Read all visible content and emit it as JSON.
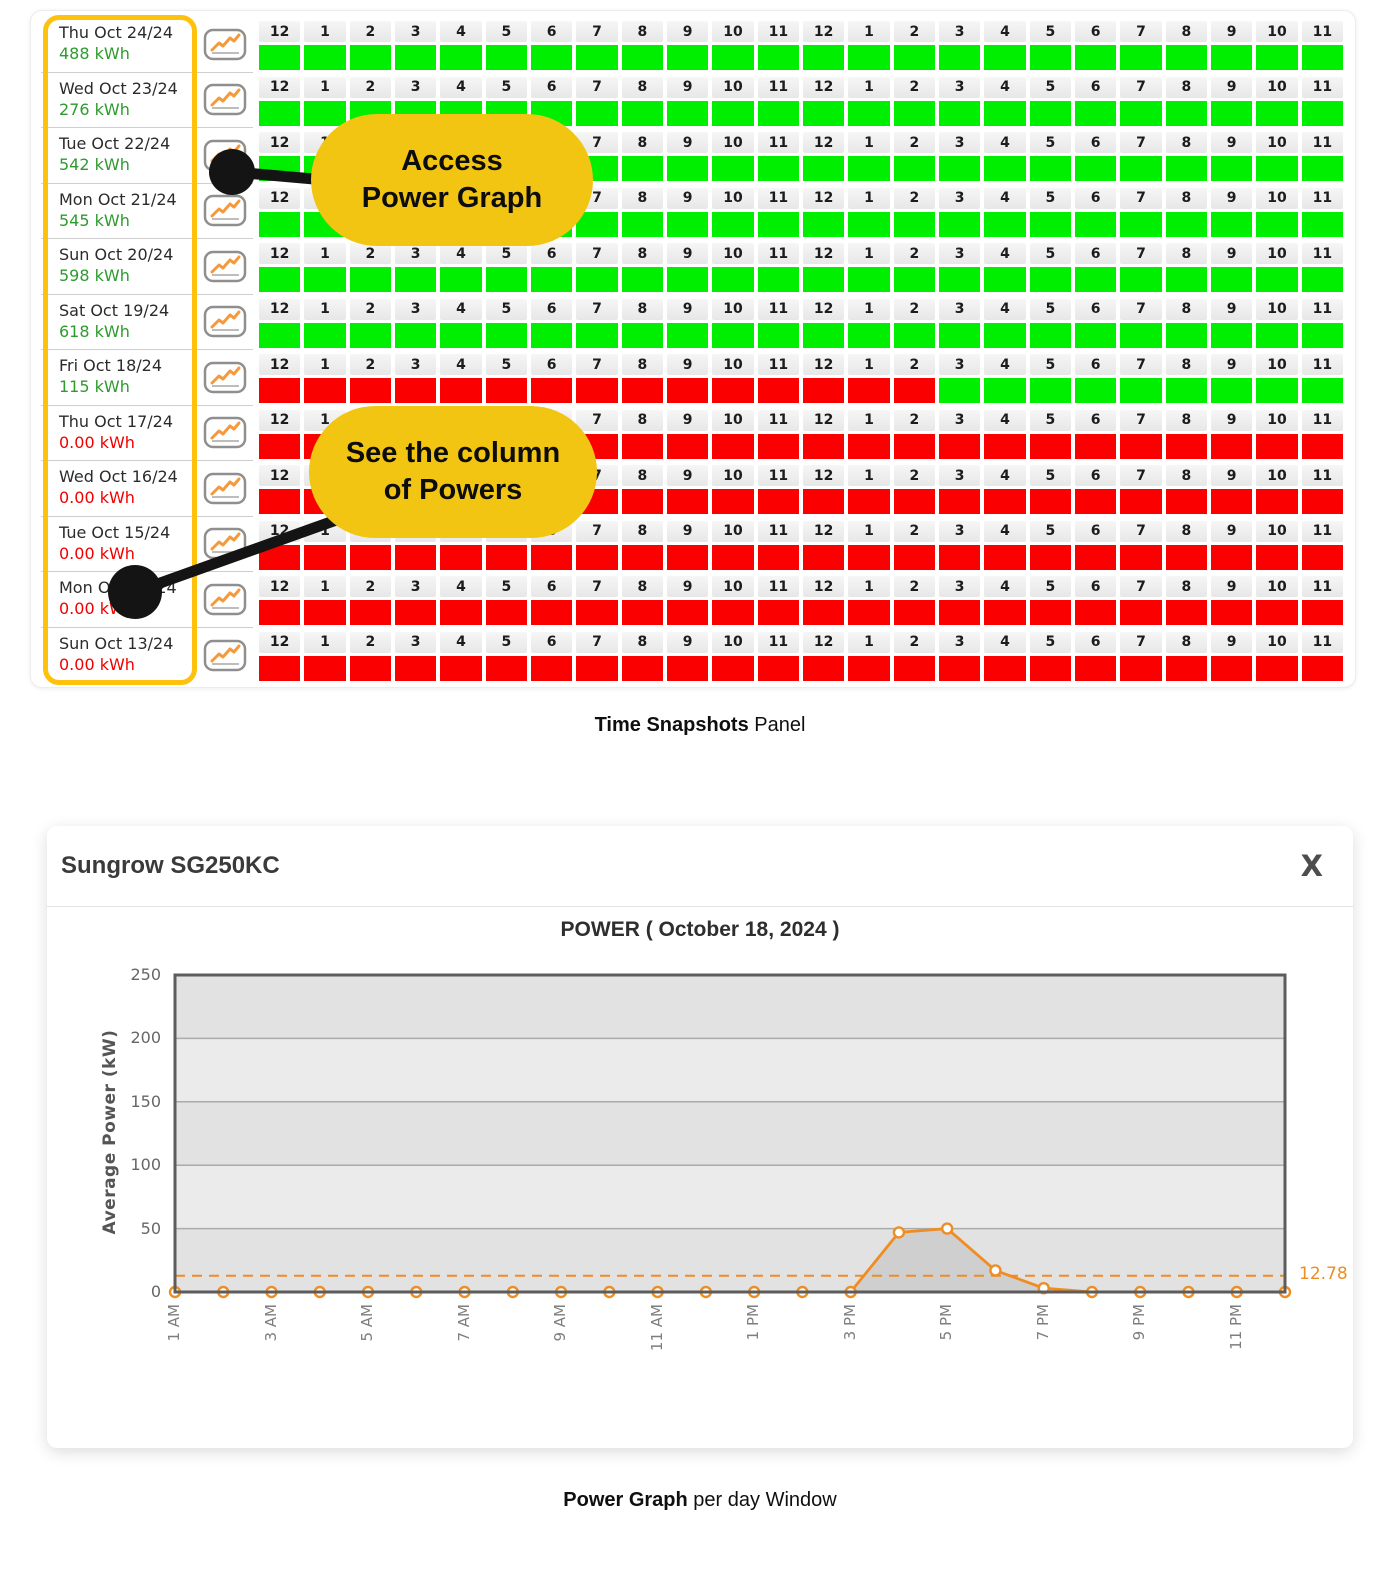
{
  "snapshot_panel": {
    "hour_labels": [
      "12",
      "1",
      "2",
      "3",
      "4",
      "5",
      "6",
      "7",
      "8",
      "9",
      "10",
      "11",
      "12",
      "1",
      "2",
      "3",
      "4",
      "5",
      "6",
      "7",
      "8",
      "9",
      "10",
      "11"
    ],
    "graph_button_icon": "line-chart-icon",
    "rows": [
      {
        "date": "Thu Oct 24/24",
        "energy": "488 kWh",
        "status": "green",
        "cells": "GGGGGGGGGGGGGGGGGGGGGGGG"
      },
      {
        "date": "Wed Oct 23/24",
        "energy": "276 kWh",
        "status": "green",
        "cells": "GGGGGGGGGGGGGGGGGGGGGGGG"
      },
      {
        "date": "Tue Oct 22/24",
        "energy": "542 kWh",
        "status": "green",
        "cells": "GGGGGGGGGGGGGGGGGGGGGGGG"
      },
      {
        "date": "Mon Oct 21/24",
        "energy": "545 kWh",
        "status": "green",
        "cells": "GGGGGGGGGGGGGGGGGGGGGGGG"
      },
      {
        "date": "Sun Oct 20/24",
        "energy": "598 kWh",
        "status": "green",
        "cells": "GGGGGGGGGGGGGGGGGGGGGGGG"
      },
      {
        "date": "Sat Oct 19/24",
        "energy": "618 kWh",
        "status": "green",
        "cells": "GGGGGGGGGGGGGGGGGGGGGGGG"
      },
      {
        "date": "Fri Oct 18/24",
        "energy": "115 kWh",
        "status": "green",
        "cells": "RRRRRRRRRRRRRRRGGGGGGGGG"
      },
      {
        "date": "Thu Oct 17/24",
        "energy": "0.00 kWh",
        "status": "red",
        "cells": "RRRRRRRRRRRRRRRRRRRRRRRR"
      },
      {
        "date": "Wed Oct 16/24",
        "energy": "0.00 kWh",
        "status": "red",
        "cells": "RRRRRRRRRRRRRRRRRRRRRRRR"
      },
      {
        "date": "Tue Oct 15/24",
        "energy": "0.00 kWh",
        "status": "red",
        "cells": "RRRRRRRRRRRRRRRRRRRRRRRR"
      },
      {
        "date": "Mon Oct 14/24",
        "energy": "0.00 kWh",
        "status": "red",
        "cells": "RRRRRRRRRRRRRRRRRRRRRRRR"
      },
      {
        "date": "Sun Oct 13/24",
        "energy": "0.00 kWh",
        "status": "red",
        "cells": "RRRRRRRRRRRRRRRRRRRRRRRR"
      }
    ]
  },
  "callouts": [
    {
      "lines": [
        "Access",
        "Power Graph"
      ]
    },
    {
      "lines": [
        "See the column",
        "of Powers"
      ]
    }
  ],
  "captions": {
    "panel_bold": "Time Snapshots",
    "panel_rest": " Panel",
    "window_bold": "Power Graph",
    "window_rest": " per day Window"
  },
  "power_window": {
    "title": "Sungrow SG250KC",
    "close_label": "X"
  },
  "chart_data": {
    "type": "line",
    "title": "POWER ( October 18, 2024 )",
    "xlabel": "",
    "ylabel": "Average Power (kW)",
    "ylim": [
      0,
      250
    ],
    "yticks": [
      0,
      50,
      100,
      150,
      200,
      250
    ],
    "x": [
      "1 AM",
      "2 AM",
      "3 AM",
      "4 AM",
      "5 AM",
      "6 AM",
      "7 AM",
      "8 AM",
      "9 AM",
      "10 AM",
      "11 AM",
      "12 PM",
      "1 PM",
      "2 PM",
      "3 PM",
      "4 PM",
      "5 PM",
      "6 PM",
      "7 PM",
      "8 PM",
      "9 PM",
      "10 PM",
      "11 PM",
      "12 AM"
    ],
    "x_tick_every": 2,
    "values": [
      0,
      0,
      0,
      0,
      0,
      0,
      0,
      0,
      0,
      0,
      0,
      0,
      0,
      0,
      0,
      47,
      50,
      17,
      3,
      0,
      0,
      0,
      0,
      0
    ],
    "reference_line": {
      "value": 12.78,
      "label": "12.78",
      "style": "dashed"
    },
    "line_color": "#ef8d22",
    "grid": true,
    "legend": false
  },
  "colors": {
    "cell_green": "#00ef00",
    "cell_red": "#fb0000",
    "energy_green": "#2e9b2e",
    "energy_red": "#f20000",
    "highlight_border": "#fec10d",
    "callout_bg": "#f2c513",
    "chart_orange": "#ef8d22"
  }
}
